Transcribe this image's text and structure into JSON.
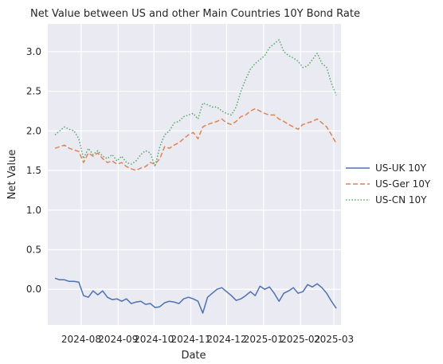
{
  "chart_data": {
    "type": "line",
    "title": "Net Value between US and other Main Countries 10Y Bond Rate",
    "xlabel": "Date",
    "ylabel": "Net Value",
    "xlim": [
      "2024-07-04",
      "2025-03-07"
    ],
    "ylim": [
      -0.45,
      3.35
    ],
    "x_ticks": [
      "2024-08",
      "2024-09",
      "2024-10",
      "2024-11",
      "2024-12",
      "2025-01",
      "2025-02",
      "2025-03"
    ],
    "y_ticks": [
      "0.0",
      "0.5",
      "1.0",
      "1.5",
      "2.0",
      "2.5",
      "3.0"
    ],
    "y_tick_values": [
      0,
      0.5,
      1,
      1.5,
      2,
      2.5,
      3
    ],
    "grid": true,
    "background_color": "#eaeaf2",
    "legend_position": "right-center",
    "series": [
      {
        "name": "US-UK 10Y",
        "color": "#4c72b0",
        "dash": "solid",
        "points": [
          [
            "2024-07-10",
            0.14
          ],
          [
            "2024-07-14",
            0.12
          ],
          [
            "2024-07-18",
            0.12
          ],
          [
            "2024-07-22",
            0.1
          ],
          [
            "2024-07-26",
            0.1
          ],
          [
            "2024-07-30",
            0.09
          ],
          [
            "2024-08-03",
            -0.08
          ],
          [
            "2024-08-07",
            -0.1
          ],
          [
            "2024-08-11",
            -0.02
          ],
          [
            "2024-08-15",
            -0.07
          ],
          [
            "2024-08-19",
            -0.02
          ],
          [
            "2024-08-23",
            -0.1
          ],
          [
            "2024-08-27",
            -0.13
          ],
          [
            "2024-08-31",
            -0.12
          ],
          [
            "2024-09-04",
            -0.15
          ],
          [
            "2024-09-08",
            -0.12
          ],
          [
            "2024-09-12",
            -0.18
          ],
          [
            "2024-09-16",
            -0.16
          ],
          [
            "2024-09-20",
            -0.15
          ],
          [
            "2024-09-24",
            -0.19
          ],
          [
            "2024-09-28",
            -0.18
          ],
          [
            "2024-10-02",
            -0.23
          ],
          [
            "2024-10-06",
            -0.22
          ],
          [
            "2024-10-10",
            -0.17
          ],
          [
            "2024-10-14",
            -0.15
          ],
          [
            "2024-10-18",
            -0.16
          ],
          [
            "2024-10-22",
            -0.18
          ],
          [
            "2024-10-26",
            -0.12
          ],
          [
            "2024-10-30",
            -0.1
          ],
          [
            "2024-11-03",
            -0.12
          ],
          [
            "2024-11-07",
            -0.15
          ],
          [
            "2024-11-11",
            -0.3
          ],
          [
            "2024-11-15",
            -0.1
          ],
          [
            "2024-11-19",
            -0.05
          ],
          [
            "2024-11-23",
            0.0
          ],
          [
            "2024-11-27",
            0.02
          ],
          [
            "2024-12-01",
            -0.03
          ],
          [
            "2024-12-05",
            -0.08
          ],
          [
            "2024-12-09",
            -0.14
          ],
          [
            "2024-12-13",
            -0.12
          ],
          [
            "2024-12-17",
            -0.08
          ],
          [
            "2024-12-21",
            -0.03
          ],
          [
            "2024-12-25",
            -0.08
          ],
          [
            "2024-12-29",
            0.04
          ],
          [
            "2025-01-02",
            0.0
          ],
          [
            "2025-01-06",
            0.03
          ],
          [
            "2025-01-10",
            -0.05
          ],
          [
            "2025-01-14",
            -0.15
          ],
          [
            "2025-01-18",
            -0.05
          ],
          [
            "2025-01-22",
            -0.02
          ],
          [
            "2025-01-26",
            0.02
          ],
          [
            "2025-01-30",
            -0.05
          ],
          [
            "2025-02-03",
            -0.03
          ],
          [
            "2025-02-07",
            0.06
          ],
          [
            "2025-02-11",
            0.03
          ],
          [
            "2025-02-15",
            0.07
          ],
          [
            "2025-02-19",
            0.02
          ],
          [
            "2025-02-23",
            -0.05
          ],
          [
            "2025-02-27",
            -0.15
          ],
          [
            "2025-03-03",
            -0.24
          ]
        ]
      },
      {
        "name": "US-Ger 10Y",
        "color": "#dd8452",
        "dash": "dashed",
        "points": [
          [
            "2024-07-10",
            1.78
          ],
          [
            "2024-07-14",
            1.8
          ],
          [
            "2024-07-18",
            1.82
          ],
          [
            "2024-07-22",
            1.78
          ],
          [
            "2024-07-26",
            1.76
          ],
          [
            "2024-07-30",
            1.74
          ],
          [
            "2024-08-03",
            1.6
          ],
          [
            "2024-08-07",
            1.72
          ],
          [
            "2024-08-11",
            1.68
          ],
          [
            "2024-08-15",
            1.72
          ],
          [
            "2024-08-19",
            1.65
          ],
          [
            "2024-08-23",
            1.6
          ],
          [
            "2024-08-27",
            1.62
          ],
          [
            "2024-08-31",
            1.58
          ],
          [
            "2024-09-04",
            1.6
          ],
          [
            "2024-09-08",
            1.55
          ],
          [
            "2024-09-12",
            1.52
          ],
          [
            "2024-09-16",
            1.5
          ],
          [
            "2024-09-20",
            1.53
          ],
          [
            "2024-09-24",
            1.55
          ],
          [
            "2024-09-28",
            1.6
          ],
          [
            "2024-10-02",
            1.58
          ],
          [
            "2024-10-06",
            1.65
          ],
          [
            "2024-10-10",
            1.8
          ],
          [
            "2024-10-14",
            1.78
          ],
          [
            "2024-10-18",
            1.82
          ],
          [
            "2024-10-22",
            1.85
          ],
          [
            "2024-10-26",
            1.9
          ],
          [
            "2024-10-30",
            1.95
          ],
          [
            "2024-11-03",
            1.98
          ],
          [
            "2024-11-07",
            1.9
          ],
          [
            "2024-11-11",
            2.05
          ],
          [
            "2024-11-15",
            2.08
          ],
          [
            "2024-11-19",
            2.1
          ],
          [
            "2024-11-23",
            2.12
          ],
          [
            "2024-11-27",
            2.15
          ],
          [
            "2024-12-01",
            2.1
          ],
          [
            "2024-12-05",
            2.08
          ],
          [
            "2024-12-09",
            2.12
          ],
          [
            "2024-12-13",
            2.18
          ],
          [
            "2024-12-17",
            2.2
          ],
          [
            "2024-12-21",
            2.25
          ],
          [
            "2024-12-25",
            2.28
          ],
          [
            "2024-12-29",
            2.25
          ],
          [
            "2025-01-02",
            2.22
          ],
          [
            "2025-01-06",
            2.2
          ],
          [
            "2025-01-10",
            2.2
          ],
          [
            "2025-01-14",
            2.15
          ],
          [
            "2025-01-18",
            2.12
          ],
          [
            "2025-01-22",
            2.08
          ],
          [
            "2025-01-26",
            2.05
          ],
          [
            "2025-01-30",
            2.02
          ],
          [
            "2025-02-03",
            2.08
          ],
          [
            "2025-02-07",
            2.1
          ],
          [
            "2025-02-11",
            2.12
          ],
          [
            "2025-02-15",
            2.15
          ],
          [
            "2025-02-19",
            2.1
          ],
          [
            "2025-02-23",
            2.05
          ],
          [
            "2025-02-27",
            1.95
          ],
          [
            "2025-03-03",
            1.84
          ]
        ]
      },
      {
        "name": "US-CN 10Y",
        "color": "#55a868",
        "dash": "dotted",
        "points": [
          [
            "2024-07-10",
            1.95
          ],
          [
            "2024-07-14",
            2.0
          ],
          [
            "2024-07-18",
            2.05
          ],
          [
            "2024-07-22",
            2.02
          ],
          [
            "2024-07-26",
            2.0
          ],
          [
            "2024-07-30",
            1.9
          ],
          [
            "2024-08-03",
            1.65
          ],
          [
            "2024-08-07",
            1.78
          ],
          [
            "2024-08-11",
            1.7
          ],
          [
            "2024-08-15",
            1.75
          ],
          [
            "2024-08-19",
            1.68
          ],
          [
            "2024-08-23",
            1.65
          ],
          [
            "2024-08-27",
            1.7
          ],
          [
            "2024-08-31",
            1.62
          ],
          [
            "2024-09-04",
            1.68
          ],
          [
            "2024-09-08",
            1.6
          ],
          [
            "2024-09-12",
            1.58
          ],
          [
            "2024-09-16",
            1.62
          ],
          [
            "2024-09-20",
            1.7
          ],
          [
            "2024-09-24",
            1.75
          ],
          [
            "2024-09-28",
            1.72
          ],
          [
            "2024-10-02",
            1.55
          ],
          [
            "2024-10-06",
            1.8
          ],
          [
            "2024-10-10",
            1.95
          ],
          [
            "2024-10-14",
            2.0
          ],
          [
            "2024-10-18",
            2.1
          ],
          [
            "2024-10-22",
            2.12
          ],
          [
            "2024-10-26",
            2.18
          ],
          [
            "2024-10-30",
            2.2
          ],
          [
            "2024-11-03",
            2.22
          ],
          [
            "2024-11-07",
            2.15
          ],
          [
            "2024-11-11",
            2.35
          ],
          [
            "2024-11-15",
            2.33
          ],
          [
            "2024-11-19",
            2.3
          ],
          [
            "2024-11-23",
            2.3
          ],
          [
            "2024-11-27",
            2.25
          ],
          [
            "2024-12-01",
            2.22
          ],
          [
            "2024-12-05",
            2.2
          ],
          [
            "2024-12-09",
            2.3
          ],
          [
            "2024-12-13",
            2.5
          ],
          [
            "2024-12-17",
            2.65
          ],
          [
            "2024-12-21",
            2.78
          ],
          [
            "2024-12-25",
            2.85
          ],
          [
            "2024-12-29",
            2.9
          ],
          [
            "2025-01-02",
            2.95
          ],
          [
            "2025-01-06",
            3.05
          ],
          [
            "2025-01-10",
            3.1
          ],
          [
            "2025-01-14",
            3.15
          ],
          [
            "2025-01-18",
            3.0
          ],
          [
            "2025-01-22",
            2.95
          ],
          [
            "2025-01-26",
            2.92
          ],
          [
            "2025-01-30",
            2.88
          ],
          [
            "2025-02-03",
            2.8
          ],
          [
            "2025-02-07",
            2.82
          ],
          [
            "2025-02-11",
            2.9
          ],
          [
            "2025-02-15",
            2.98
          ],
          [
            "2025-02-19",
            2.85
          ],
          [
            "2025-02-23",
            2.8
          ],
          [
            "2025-02-27",
            2.6
          ],
          [
            "2025-03-03",
            2.45
          ]
        ]
      }
    ]
  }
}
